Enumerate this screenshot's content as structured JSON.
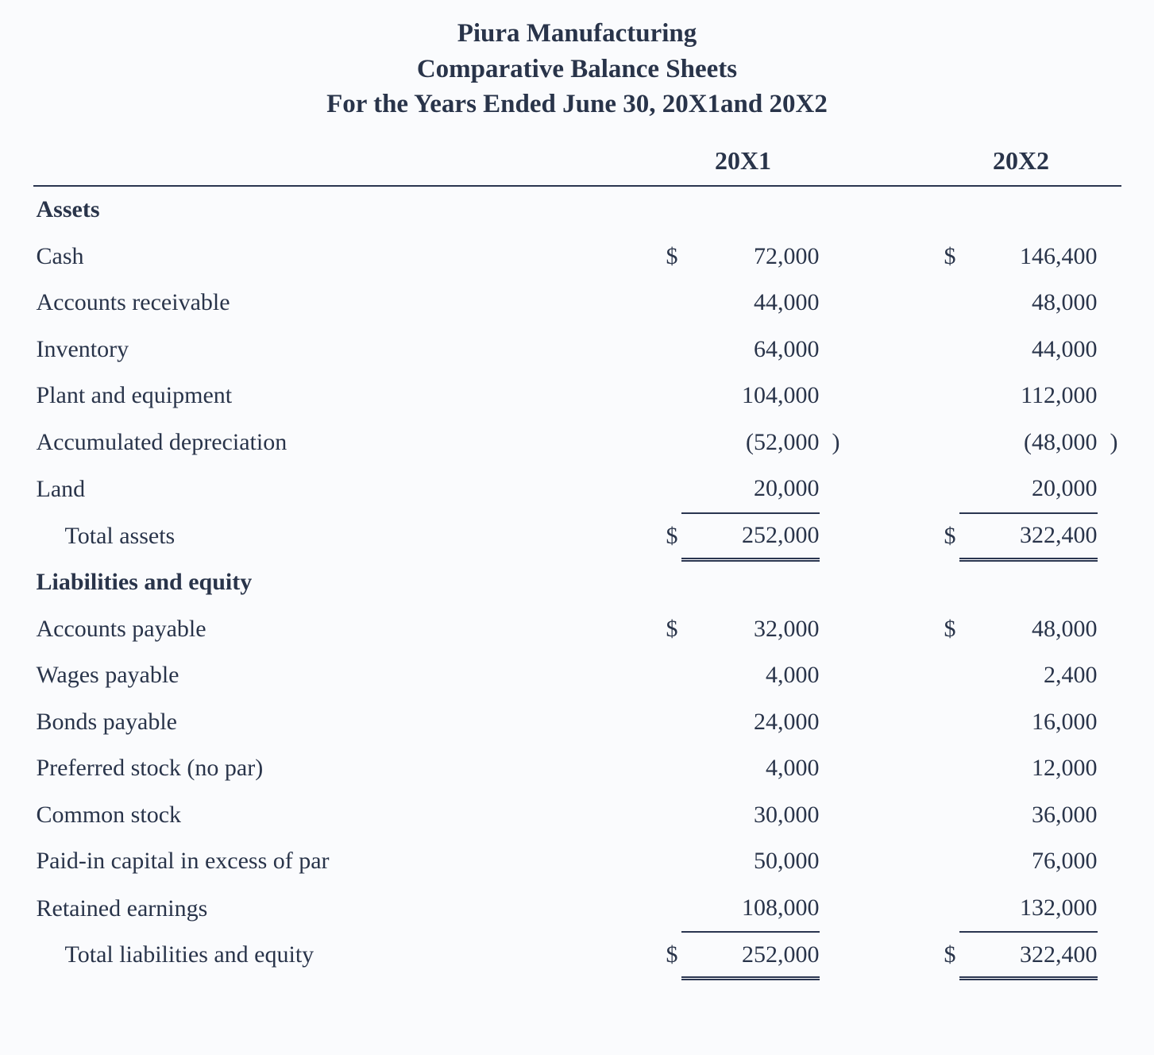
{
  "title": {
    "line1": "Piura Manufacturing",
    "line2": "Comparative Balance Sheets",
    "line3": "For the Years Ended June 30, 20X1and 20X2"
  },
  "columns": {
    "y1": "20X1",
    "y2": "20X2"
  },
  "sections": {
    "assets": "Assets",
    "liab": "Liabilities and equity"
  },
  "rows": {
    "cash": {
      "label": "Cash",
      "y1c": "$",
      "y1": "72,000",
      "y2c": "$",
      "y2": "146,400"
    },
    "ar": {
      "label": "Accounts receivable",
      "y1": "44,000",
      "y2": "48,000"
    },
    "inv": {
      "label": "Inventory",
      "y1": "64,000",
      "y2": "44,000"
    },
    "pne": {
      "label": "Plant and equipment",
      "y1": "104,000",
      "y2": "112,000"
    },
    "accdep": {
      "label": "Accumulated depreciation",
      "y1": "(52,000",
      "y1p": ")",
      "y2": "(48,000",
      "y2p": ")"
    },
    "land": {
      "label": "Land",
      "y1": "20,000",
      "y2": "20,000"
    },
    "ta": {
      "label": "Total assets",
      "y1c": "$",
      "y1": "252,000",
      "y2c": "$",
      "y2": "322,400"
    },
    "ap": {
      "label": "Accounts payable",
      "y1c": "$",
      "y1": "32,000",
      "y2c": "$",
      "y2": "48,000"
    },
    "wp": {
      "label": "Wages payable",
      "y1": "4,000",
      "y2": "2,400"
    },
    "bp": {
      "label": "Bonds payable",
      "y1": "24,000",
      "y2": "16,000"
    },
    "ps": {
      "label": "Preferred stock (no par)",
      "y1": "4,000",
      "y2": "12,000"
    },
    "cs": {
      "label": "Common stock",
      "y1": "30,000",
      "y2": "36,000"
    },
    "pic": {
      "label": "Paid-in capital in excess of par",
      "y1": "50,000",
      "y2": "76,000"
    },
    "re": {
      "label": "Retained earnings",
      "y1": "108,000",
      "y2": "132,000"
    },
    "tle": {
      "label": "Total liabilities and equity",
      "y1c": "$",
      "y1": "252,000",
      "y2c": "$",
      "y2": "322,400"
    }
  },
  "style": {
    "type": "table",
    "text_color": "#29344a",
    "background_color": "#fafbfd",
    "rule_color": "#2a3550",
    "body_fontsize_pt": 22,
    "header_fontsize_pt": 24,
    "title_fontsize_pt": 25,
    "font_family": "Garamond / serif",
    "columns": [
      "label",
      "20X1",
      "20X2"
    ],
    "column_align": [
      "left",
      "right",
      "right"
    ],
    "underlines": {
      "single_bottom": [
        "land (pre-total)",
        "re (pre-total)"
      ],
      "double_bottom": [
        "ta",
        "tle"
      ]
    }
  }
}
